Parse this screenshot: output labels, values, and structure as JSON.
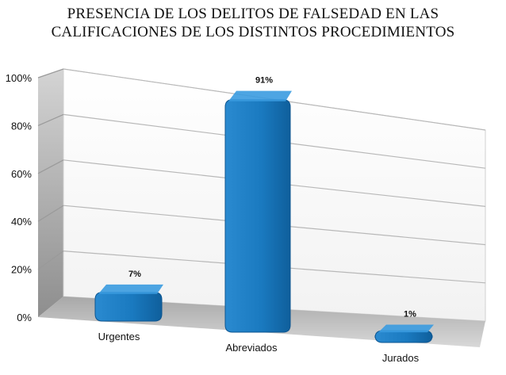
{
  "chart_data": {
    "type": "bar",
    "title_lines": [
      "PRESENCIA DE LOS DELITOS DE FALSEDAD EN LAS",
      "CALIFICACIONES DE LOS DISTINTOS PROCEDIMIENTOS"
    ],
    "categories": [
      "Urgentes",
      "Abreviados",
      "Jurados"
    ],
    "values": [
      7,
      91,
      1
    ],
    "data_labels": [
      "7%",
      "91%",
      "1%"
    ],
    "y_ticks": [
      "0%",
      "20%",
      "40%",
      "60%",
      "80%",
      "100%"
    ],
    "ylim": [
      0,
      100
    ],
    "grid": true,
    "bar_color": "#1a7ac0"
  }
}
